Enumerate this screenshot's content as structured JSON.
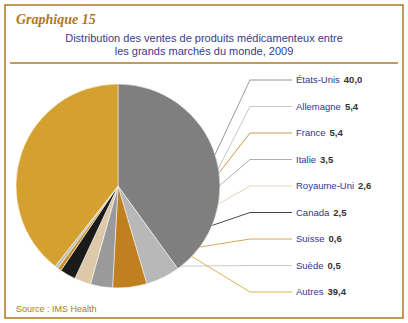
{
  "chart_data": {
    "type": "pie",
    "title": "Graphique 15",
    "subtitle": "Distribution des ventes de produits médicamenteux entre\nles grands marchés du monde, 2009",
    "annotations": [
      "Source : IMS Health"
    ],
    "categories": [
      "États-Unis",
      "Allemagne",
      "France",
      "Italie",
      "Royaume-Uni",
      "Canada",
      "Suisse",
      "Suède",
      "Autres"
    ],
    "values": [
      40.0,
      5.4,
      5.4,
      3.5,
      2.6,
      2.5,
      0.6,
      0.5,
      39.4
    ],
    "value_labels": [
      "40,0",
      "5,4",
      "5,4",
      "3,5",
      "2,6",
      "2,5",
      "0,6",
      "0,5",
      "39,4"
    ],
    "data_labels": true,
    "colors": [
      "#7f7f7f",
      "#b8b8b8",
      "#c08020",
      "#9a9a9a",
      "#ddc9a8",
      "#1a1a1a",
      "#c8902a",
      "#bebebe",
      "#d4a030"
    ]
  }
}
